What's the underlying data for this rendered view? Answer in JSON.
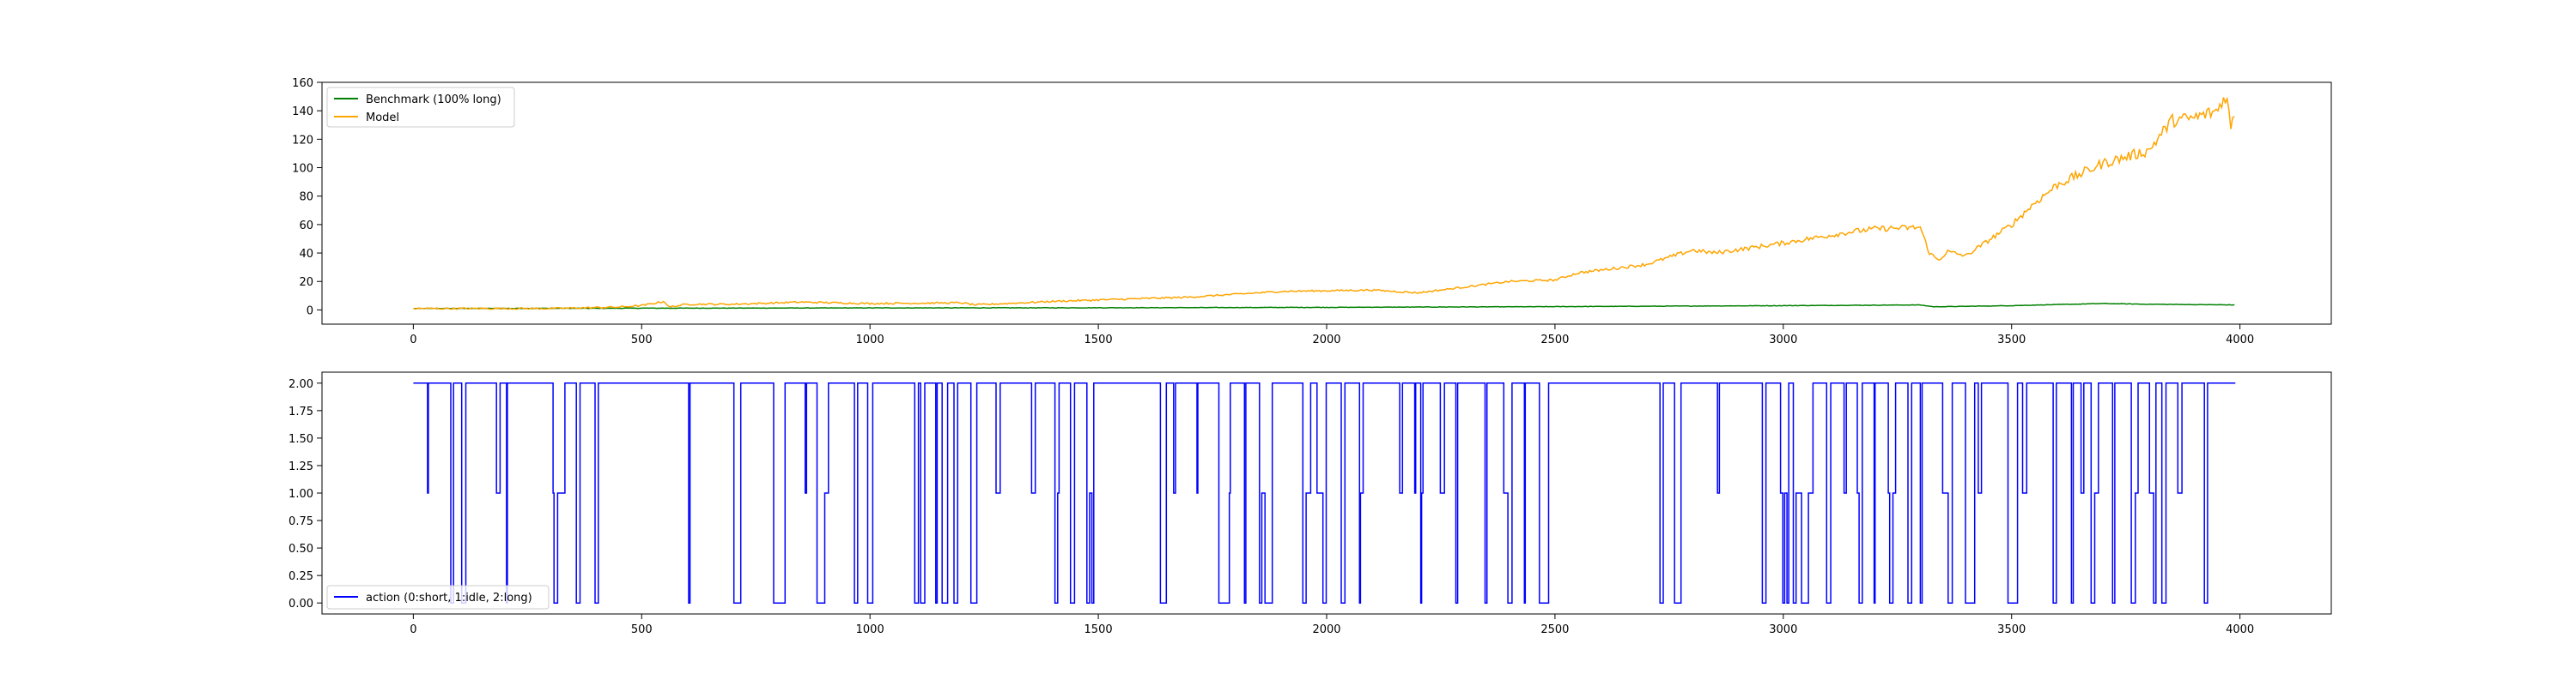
{
  "figure": {
    "background": "#ffffff"
  },
  "chart_data": [
    {
      "type": "line",
      "title": "",
      "xlabel": "",
      "ylabel": "",
      "xlim": [
        -200,
        4200
      ],
      "ylim": [
        -10,
        160
      ],
      "x_ticks": [
        0,
        500,
        1000,
        1500,
        2000,
        2500,
        3000,
        3500,
        4000
      ],
      "y_ticks": [
        0,
        20,
        40,
        60,
        80,
        100,
        120,
        140,
        160
      ],
      "grid": false,
      "legend": {
        "placement": "upper-left"
      },
      "series": [
        {
          "name": "Benchmark (100% long)",
          "color": "#008000",
          "x": [
            0,
            500,
            1000,
            1500,
            2000,
            2500,
            3000,
            3300,
            3330,
            3500,
            3700,
            3800,
            3990
          ],
          "y": [
            1,
            1.2,
            1.4,
            1.5,
            1.8,
            2.3,
            3.0,
            3.5,
            2.2,
            3.0,
            4.5,
            4.0,
            3.5
          ]
        },
        {
          "name": "Model",
          "color": "#ffa500",
          "x": [
            0,
            300,
            450,
            500,
            550,
            560,
            600,
            700,
            850,
            1000,
            1200,
            1230,
            1400,
            1500,
            1700,
            1900,
            2100,
            2200,
            2400,
            2500,
            2550,
            2700,
            2800,
            2850,
            3000,
            3150,
            3200,
            3300,
            3320,
            3340,
            3360,
            3400,
            3500,
            3550,
            3600,
            3700,
            3800,
            3850,
            3900,
            3950,
            3970,
            3980,
            3990
          ],
          "y": [
            1,
            1,
            2,
            3,
            6,
            2,
            4,
            4,
            5.5,
            4.5,
            5,
            3.5,
            6,
            7,
            9,
            13,
            14,
            12,
            20,
            21,
            26,
            32,
            42,
            40,
            47,
            55,
            57,
            58,
            40,
            35,
            41,
            38,
            60,
            75,
            88,
            103,
            112,
            133,
            135,
            140,
            152,
            128,
            140
          ]
        }
      ]
    },
    {
      "type": "line",
      "title": "",
      "xlabel": "",
      "ylabel": "",
      "xlim": [
        -200,
        4200
      ],
      "ylim": [
        -0.1,
        2.1
      ],
      "x_ticks": [
        0,
        500,
        1000,
        1500,
        2000,
        2500,
        3000,
        3500,
        4000
      ],
      "y_ticks": [
        0.0,
        0.25,
        0.5,
        0.75,
        1.0,
        1.25,
        1.5,
        1.75,
        2.0
      ],
      "y_tick_labels": [
        "0.00",
        "0.25",
        "0.50",
        "0.75",
        "1.00",
        "1.25",
        "1.50",
        "1.75",
        "2.00"
      ],
      "grid": false,
      "legend": {
        "placement": "lower-left"
      },
      "series": [
        {
          "name": "action (0:short, 1:idle, 2:long)",
          "color": "#0000ff",
          "x_start": 0,
          "x_end": 3990,
          "values_summary": "step series switching between 0, 1 and 2; mostly 2 with frequent drops to 0 and occasional 1"
        }
      ]
    }
  ]
}
